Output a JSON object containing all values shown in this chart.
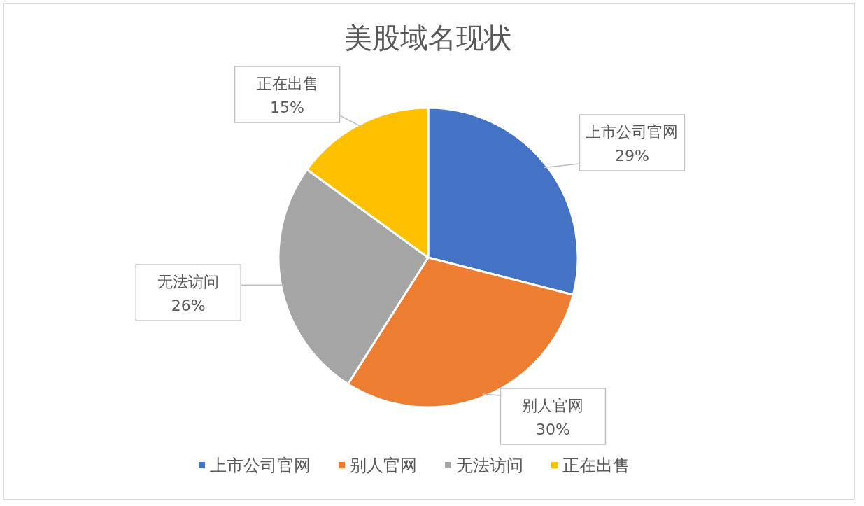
{
  "chart_data": {
    "type": "pie",
    "title": "美股域名现状",
    "categories": [
      "上市公司官网",
      "别人官网",
      "无法访问",
      "正在出售"
    ],
    "values": [
      29,
      30,
      26,
      15
    ],
    "colors": [
      "#4472c4",
      "#ed7d31",
      "#a5a5a5",
      "#ffc000"
    ],
    "value_labels": [
      "29%",
      "30%",
      "26%",
      "15%"
    ],
    "legend": "bottom"
  }
}
